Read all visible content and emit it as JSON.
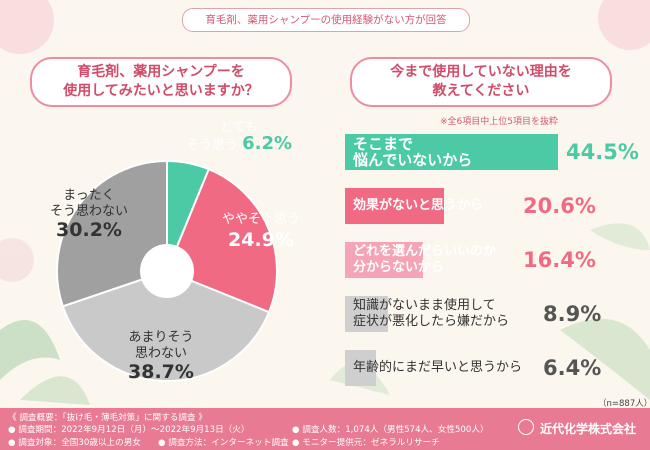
{
  "header": {
    "banner": "育毛剤、薬用シャンプーの使用経験がない方が回答"
  },
  "left_question": {
    "line1": "育毛剤、薬用シャンプーを",
    "line2": "使用してみたいと思いますか？"
  },
  "right_question": {
    "line1": "今まで使用していない理由を",
    "line2": "教えてください"
  },
  "note": "※全6項目中上位5項目を抜粋",
  "sample_size": "（n=887人）",
  "colors": {
    "teal": "#4cc9a5",
    "pink": "#f06a83",
    "dark_gray": "#a0a0a0",
    "light_gray": "#c9c9c9",
    "bar_gray": "#cfcfcf",
    "footer": "#e87a93"
  },
  "chart_data": [
    {
      "type": "pie",
      "slices": [
        {
          "label1": "とても",
          "label2": "そう思う",
          "value": 6.2,
          "pct_text": "6.2%",
          "color": "#4cc9a5"
        },
        {
          "label1": "ややそう思う",
          "label2": "",
          "value": 24.9,
          "pct_text": "24.9%",
          "color": "#f06a83"
        },
        {
          "label1": "あまりそう",
          "label2": "思わない",
          "value": 38.7,
          "pct_text": "38.7%",
          "color": "#c9c9c9"
        },
        {
          "label1": "まったく",
          "label2": "そう思わない",
          "value": 30.2,
          "pct_text": "30.2%",
          "color": "#a0a0a0"
        }
      ]
    },
    {
      "type": "bar",
      "categories": [
        {
          "line1": "そこまで",
          "line2": "悩んでいないから"
        },
        {
          "line1": "効果がないと思うから",
          "line2": ""
        },
        {
          "line1": "どれを選んだらいいのか",
          "line2": "分からないから"
        },
        {
          "line1": "知識がないまま使用して",
          "line2": "症状が悪化したら嫌だから"
        },
        {
          "line1": "年齢的にまだ早いと思うから",
          "line2": ""
        }
      ],
      "values": [
        44.5,
        20.6,
        16.4,
        8.9,
        6.4
      ],
      "pct_text": [
        "44.5%",
        "20.6%",
        "16.4%",
        "8.9%",
        "6.4%"
      ],
      "colors": [
        "#4cc9a5",
        "#f06a83",
        "#f4a4b4",
        "#cfcfcf",
        "#cfcfcf"
      ],
      "xlim": [
        0,
        44.5
      ]
    }
  ],
  "footer": {
    "title": "《 調査概要：「抜け毛・薄毛対策」に関する調査 》",
    "period": "● 調査期間：2022年9月12日（月）〜2022年9月13日（火）",
    "count": "● 調査人数：1,074人（男性574人、女性500人）",
    "target": "● 調査対象：全国30歳以上の男女",
    "method": "● 調査方法：インターネット調査",
    "monitor": "● モニター提供元：ゼネラルリサーチ",
    "company": "近代化学株式会社"
  }
}
